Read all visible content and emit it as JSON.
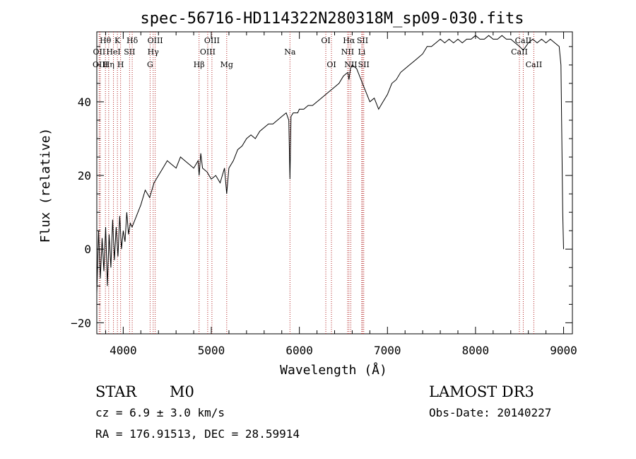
{
  "chart_data": {
    "type": "line",
    "title": "spec-56716-HD114322N280318M_sp09-030.fits",
    "xlabel": "Wavelength (Å)",
    "ylabel": "Flux (relative)",
    "xlim": [
      3700,
      9100
    ],
    "ylim": [
      -23,
      59
    ],
    "xticks": [
      4000,
      5000,
      6000,
      7000,
      8000,
      9000
    ],
    "yticks": [
      -20,
      0,
      20,
      40
    ],
    "series": [
      {
        "name": "flux",
        "x": [
          3700,
          3720,
          3740,
          3760,
          3780,
          3800,
          3820,
          3840,
          3860,
          3880,
          3900,
          3920,
          3940,
          3960,
          3980,
          4000,
          4020,
          4040,
          4060,
          4080,
          4100,
          4150,
          4200,
          4250,
          4300,
          4350,
          4400,
          4450,
          4500,
          4550,
          4600,
          4650,
          4700,
          4750,
          4800,
          4850,
          4862,
          4880,
          4900,
          4950,
          5000,
          5050,
          5100,
          5150,
          5175,
          5200,
          5250,
          5300,
          5350,
          5400,
          5450,
          5500,
          5550,
          5600,
          5650,
          5700,
          5750,
          5800,
          5850,
          5880,
          5893,
          5905,
          5930,
          5980,
          6000,
          6050,
          6100,
          6150,
          6200,
          6250,
          6300,
          6350,
          6400,
          6450,
          6500,
          6550,
          6563,
          6580,
          6600,
          6650,
          6700,
          6750,
          6800,
          6850,
          6900,
          6950,
          7000,
          7050,
          7100,
          7150,
          7200,
          7250,
          7300,
          7350,
          7400,
          7450,
          7500,
          7550,
          7600,
          7650,
          7700,
          7750,
          7800,
          7850,
          7900,
          7950,
          8000,
          8050,
          8100,
          8150,
          8200,
          8250,
          8300,
          8350,
          8400,
          8450,
          8500,
          8542,
          8600,
          8650,
          8700,
          8750,
          8800,
          8850,
          8900,
          8950,
          8970,
          8990,
          9000
        ],
        "y": [
          -12,
          5,
          -8,
          3,
          -6,
          6,
          -10,
          4,
          -5,
          8,
          -3,
          6,
          -2,
          9,
          0,
          5,
          2,
          10,
          4,
          7,
          6,
          9,
          12,
          16,
          14,
          18,
          20,
          22,
          24,
          23,
          22,
          25,
          24,
          23,
          22,
          24,
          20,
          26,
          22,
          21,
          19,
          20,
          18,
          22,
          15,
          22,
          24,
          27,
          28,
          30,
          31,
          30,
          32,
          33,
          34,
          34,
          35,
          36,
          37,
          35,
          19,
          36,
          37,
          37,
          38,
          38,
          39,
          39,
          40,
          41,
          42,
          43,
          44,
          45,
          47,
          48,
          46,
          49,
          50,
          49,
          46,
          43,
          40,
          41,
          38,
          40,
          42,
          45,
          46,
          48,
          49,
          50,
          51,
          52,
          53,
          55,
          55,
          56,
          57,
          56,
          57,
          56,
          57,
          56,
          57,
          57,
          58,
          57,
          57,
          58,
          57,
          57,
          58,
          57,
          57,
          56,
          55,
          54,
          56,
          57,
          56,
          57,
          56,
          57,
          56,
          55,
          50,
          10,
          0
        ]
      }
    ],
    "lines": [
      {
        "name": "Hθ",
        "wavelength": 3798,
        "row": 1
      },
      {
        "name": "OII",
        "wavelength": 3727,
        "row": 2
      },
      {
        "name": "OIII",
        "wavelength": 3740,
        "row": 3
      },
      {
        "name": "Hη",
        "wavelength": 3835,
        "row": 3
      },
      {
        "name": "HeI",
        "wavelength": 3889,
        "row": 2
      },
      {
        "name": "K",
        "wavelength": 3934,
        "row": 1
      },
      {
        "name": "SII",
        "wavelength": 4072,
        "row": 2
      },
      {
        "name": "H",
        "wavelength": 3970,
        "row": 3
      },
      {
        "name": "Hδ",
        "wavelength": 4102,
        "row": 1
      },
      {
        "name": "OIII",
        "wavelength": 4363,
        "row": 1
      },
      {
        "name": "Hγ",
        "wavelength": 4340,
        "row": 2
      },
      {
        "name": "G",
        "wavelength": 4305,
        "row": 3
      },
      {
        "name": "Hβ",
        "wavelength": 4861,
        "row": 3
      },
      {
        "name": "OIII",
        "wavelength": 5007,
        "row": 1
      },
      {
        "name": "OIII",
        "wavelength": 4959,
        "row": 2
      },
      {
        "name": "Mg",
        "wavelength": 5175,
        "row": 3
      },
      {
        "name": "Na",
        "wavelength": 5893,
        "row": 2
      },
      {
        "name": "OI",
        "wavelength": 6300,
        "row": 1
      },
      {
        "name": "OI",
        "wavelength": 6364,
        "row": 3
      },
      {
        "name": "Hα",
        "wavelength": 6563,
        "row": 1
      },
      {
        "name": "NII",
        "wavelength": 6548,
        "row": 2
      },
      {
        "name": "NII",
        "wavelength": 6584,
        "row": 3
      },
      {
        "name": "SII",
        "wavelength": 6717,
        "row": 1
      },
      {
        "name": "Li",
        "wavelength": 6708,
        "row": 2
      },
      {
        "name": "SII",
        "wavelength": 6731,
        "row": 3
      },
      {
        "name": "CaII",
        "wavelength": 8542,
        "row": 1
      },
      {
        "name": "CaII",
        "wavelength": 8498,
        "row": 2
      },
      {
        "name": "CaII",
        "wavelength": 8662,
        "row": 3
      }
    ]
  },
  "info": {
    "object_class": "STAR",
    "subclass": "M0",
    "cz": "cz = 6.9 ± 3.0 km/s",
    "radec": "RA = 176.91513, DEC =  28.59914",
    "survey": "LAMOST DR3",
    "obs_date": "Obs-Date: 20140227"
  },
  "colors": {
    "line_marker": "#b22222",
    "spectrum": "#000000",
    "axes": "#000000"
  }
}
